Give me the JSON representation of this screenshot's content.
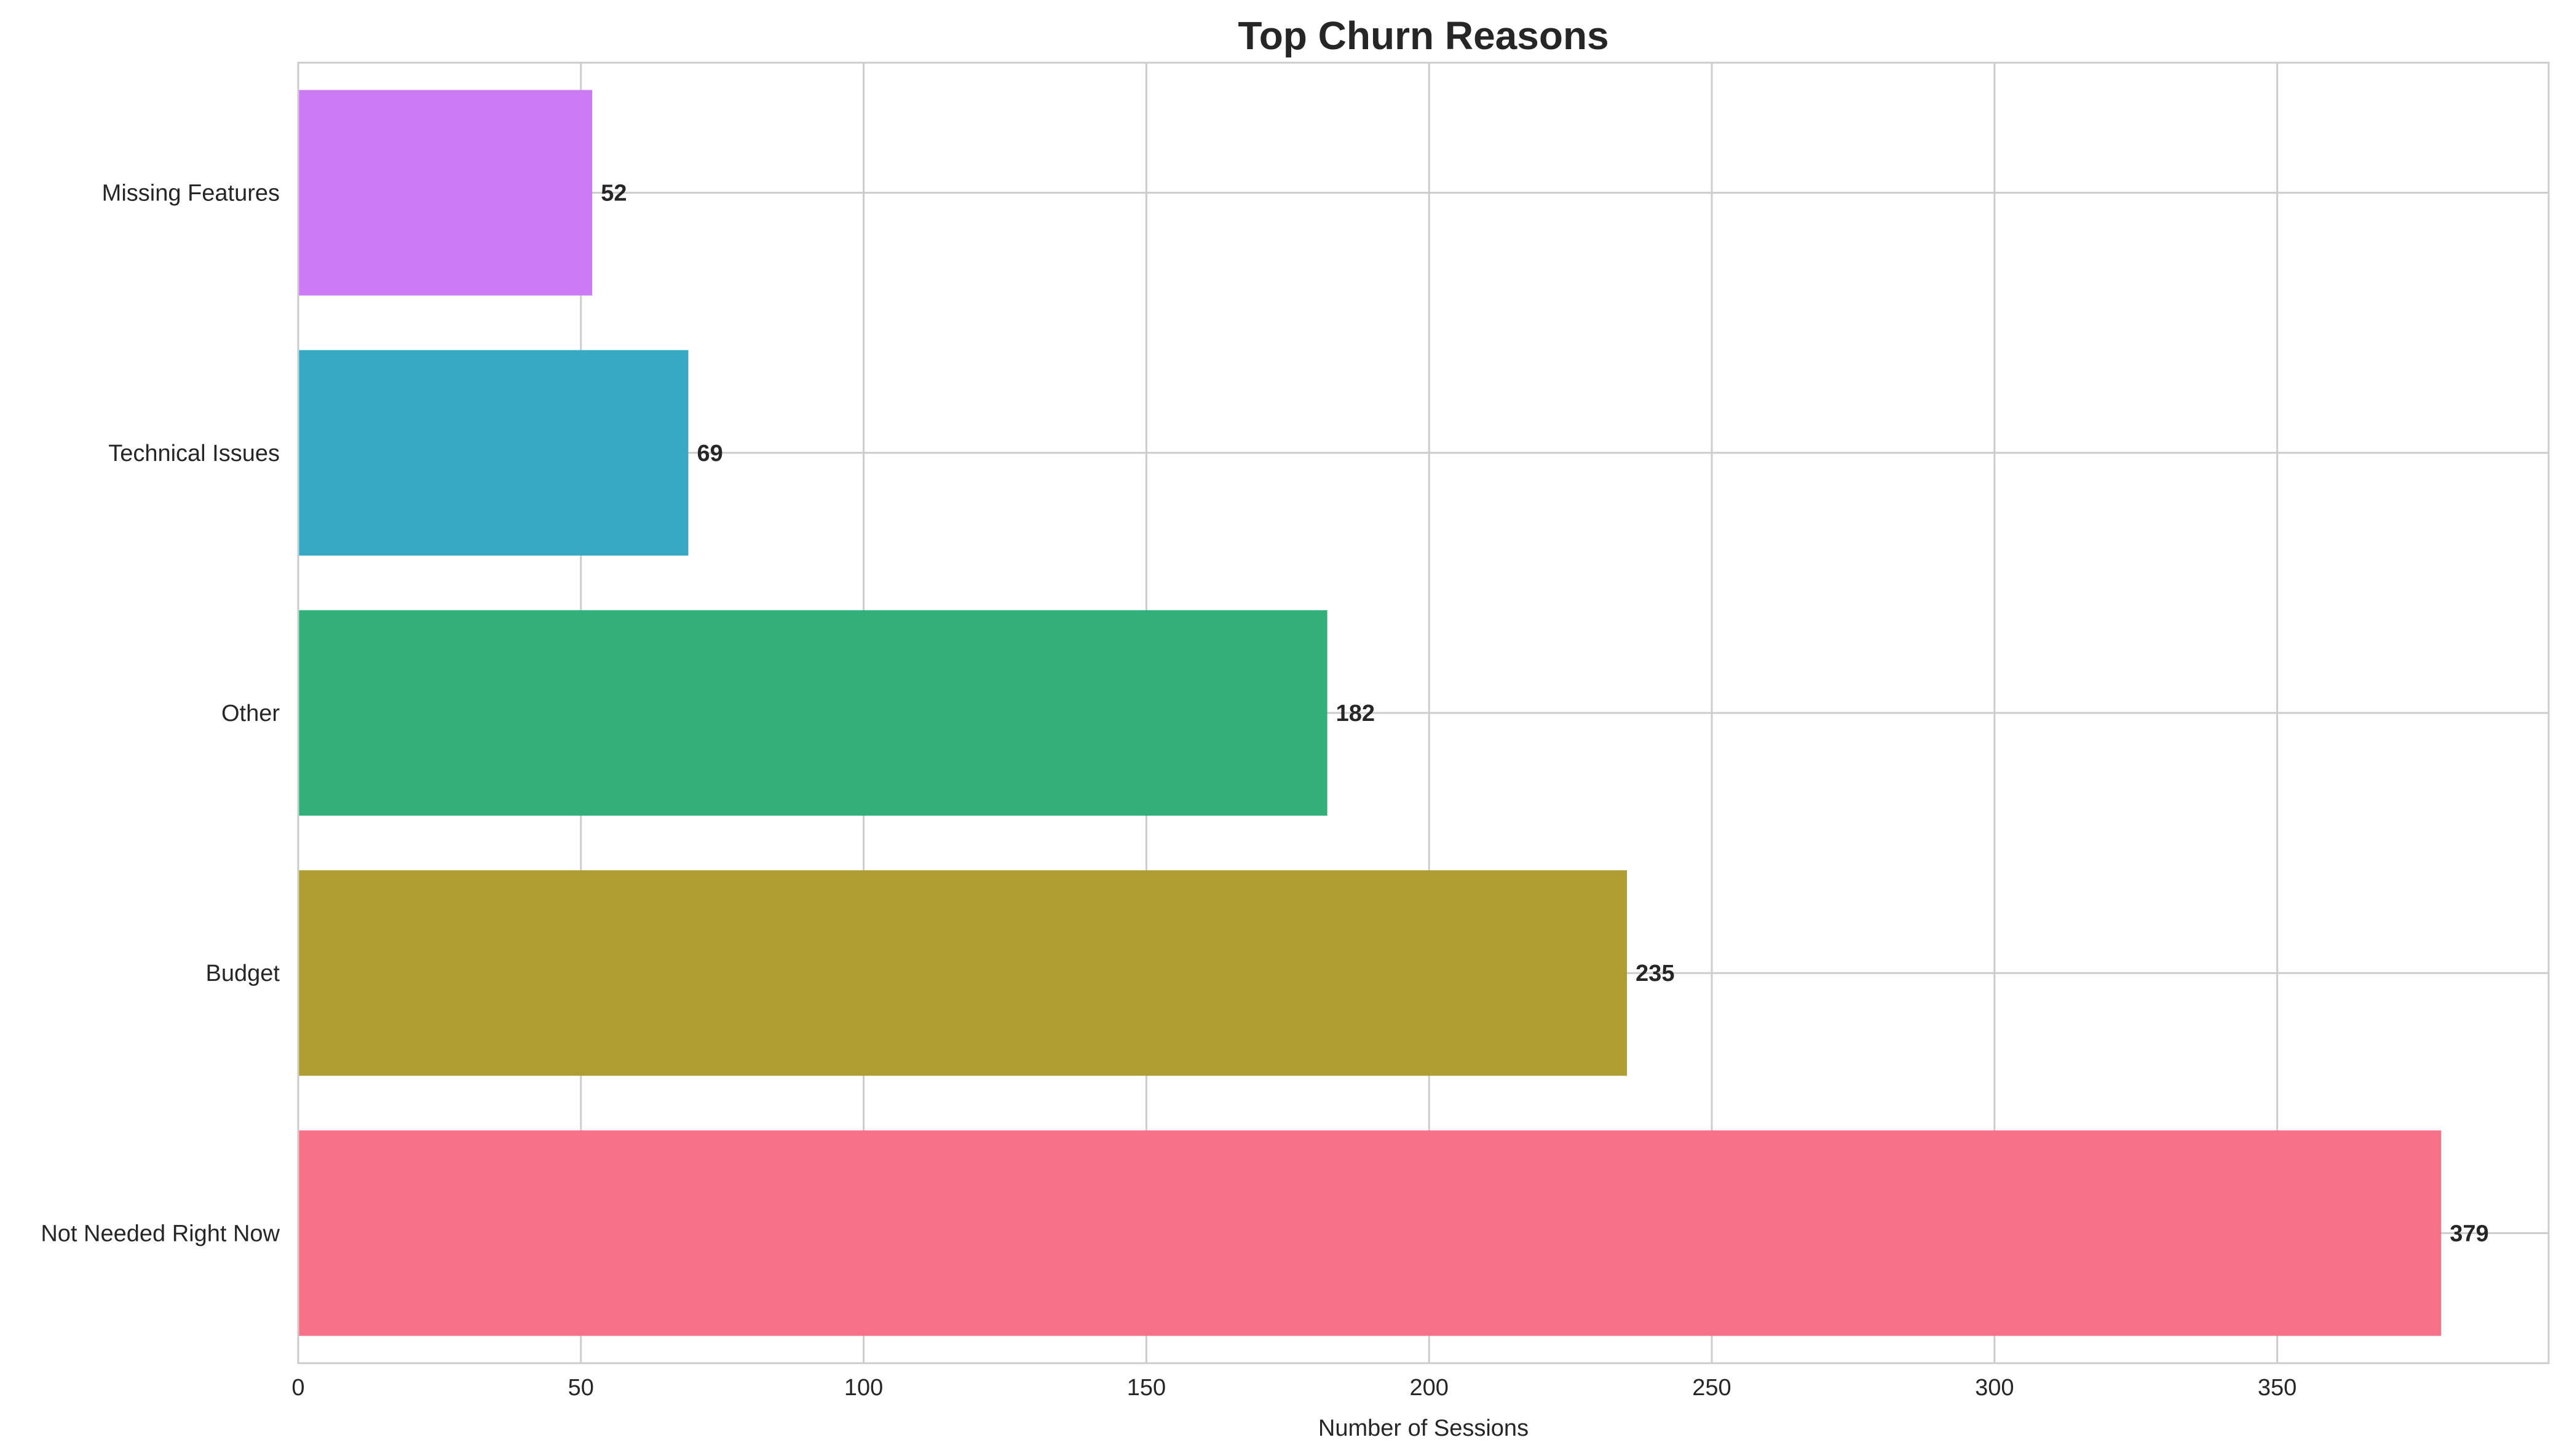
{
  "chart_data": {
    "type": "bar",
    "orientation": "horizontal",
    "title": "Top Churn Reasons",
    "xlabel": "Number of Sessions",
    "ylabel": "",
    "xlim": [
      0,
      398
    ],
    "xticks": [
      0,
      50,
      100,
      150,
      200,
      250,
      300,
      350
    ],
    "grid": true,
    "legend": "none",
    "categories": [
      "Not Needed Right Now",
      "Budget",
      "Other",
      "Technical Issues",
      "Missing Features"
    ],
    "values": [
      379,
      235,
      182,
      69,
      52
    ],
    "colors": [
      "#f77189",
      "#ae9d31",
      "#33b07a",
      "#38a9c5",
      "#cc7af4"
    ]
  }
}
